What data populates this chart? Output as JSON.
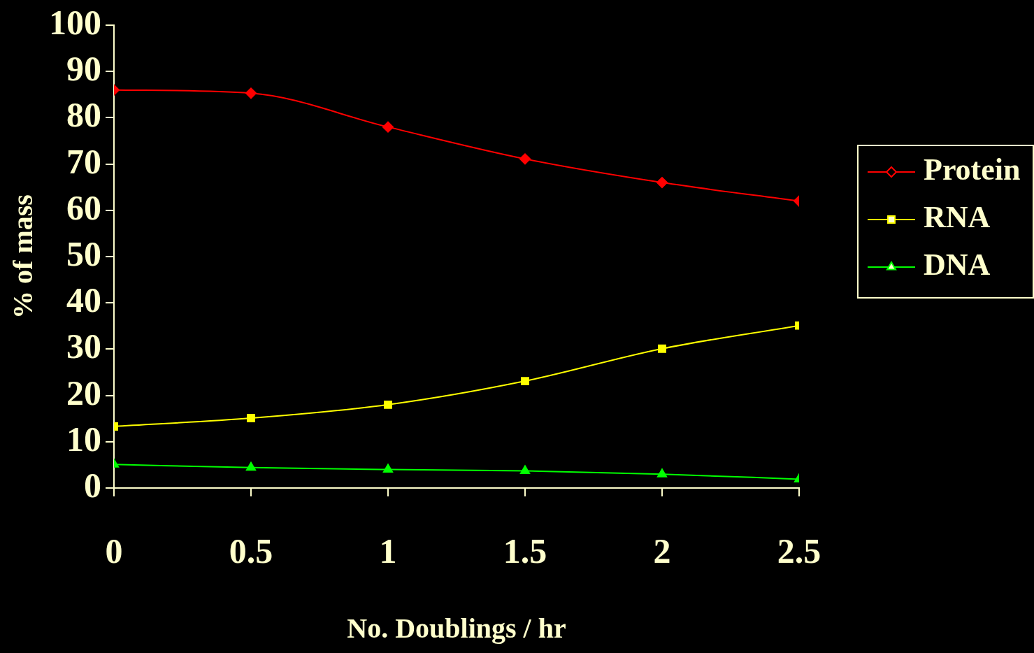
{
  "chart_data": {
    "type": "line",
    "xlabel": "No. Doublings / hr",
    "ylabel": "% of mass",
    "x": [
      0,
      0.5,
      1,
      1.5,
      2,
      2.5
    ],
    "series": [
      {
        "name": "Protein",
        "color": "#ff0000",
        "marker": "diamond",
        "values": [
          86,
          85.3,
          78,
          71.1,
          66,
          62
        ]
      },
      {
        "name": "RNA",
        "color": "#ffff00",
        "marker": "square",
        "values": [
          13.3,
          15.1,
          18,
          23.1,
          30.1,
          35.1
        ]
      },
      {
        "name": "DNA",
        "color": "#00ff00",
        "marker": "triangle",
        "values": [
          5.1,
          4.4,
          4,
          3.7,
          3,
          1.9
        ]
      }
    ],
    "xlim": [
      0,
      2.5
    ],
    "xticks": [
      0,
      0.5,
      1,
      1.5,
      2,
      2.5
    ],
    "ylim": [
      0,
      100
    ],
    "yticks": [
      0,
      10,
      20,
      30,
      40,
      50,
      60,
      70,
      80,
      90,
      100
    ],
    "grid": false,
    "legend": "right"
  }
}
